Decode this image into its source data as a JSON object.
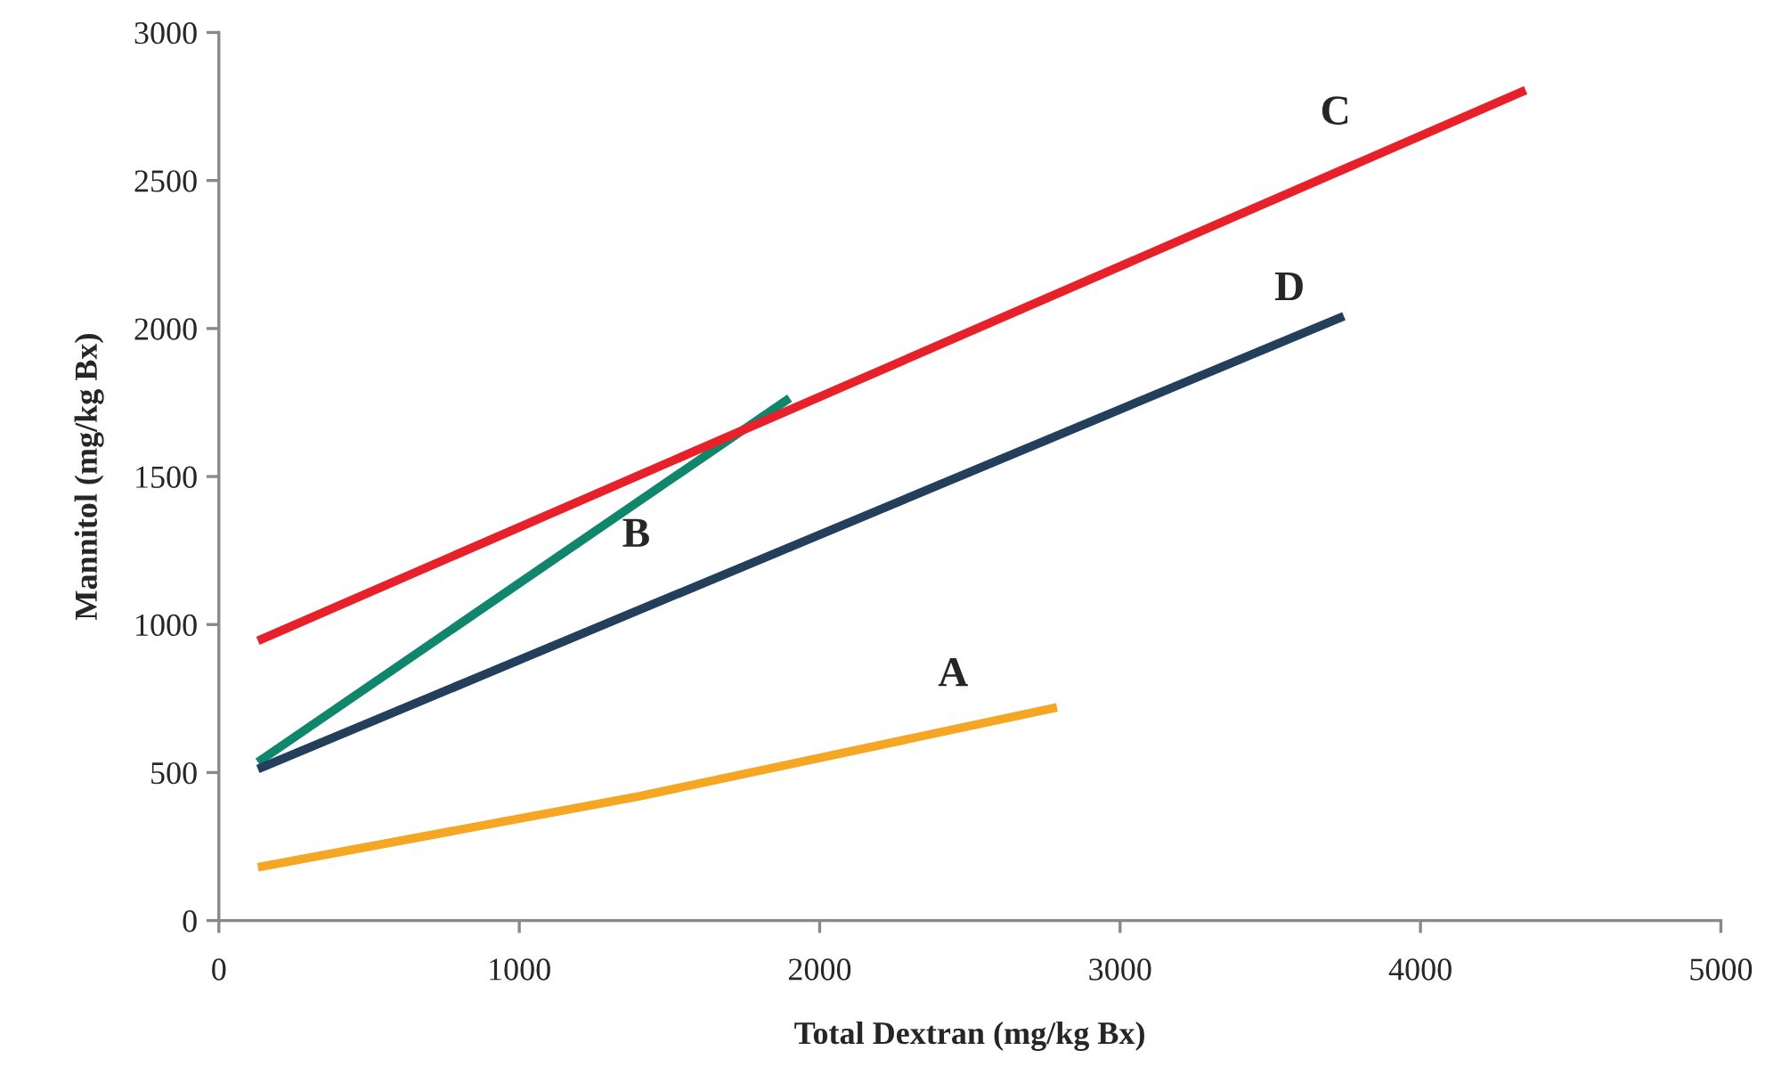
{
  "chart_data": {
    "type": "line",
    "xlabel": "Total Dextran (mg/kg Bx)",
    "ylabel": "Mannitol (mg/kg Bx)",
    "xlim": [
      0,
      5000
    ],
    "xticks": [
      0,
      1000,
      2000,
      3000,
      4000,
      5000
    ],
    "ylim": [
      0,
      3000
    ],
    "yticks": [
      0,
      500,
      1000,
      1500,
      2000,
      2500,
      3000
    ],
    "grid": false,
    "legend": false,
    "marker": "none",
    "line_style": "solid",
    "series": [
      {
        "name": "A",
        "color": "#f5a623",
        "x": [
          130,
          1400,
          2790
        ],
        "values": [
          180,
          420,
          720
        ]
      },
      {
        "name": "B",
        "color": "#10876d",
        "x": [
          130,
          1900
        ],
        "values": [
          535,
          1765
        ]
      },
      {
        "name": "C",
        "color": "#e8202a",
        "x": [
          130,
          4350
        ],
        "values": [
          945,
          2805
        ]
      },
      {
        "name": "D",
        "color": "#233f5c",
        "x": [
          130,
          3745
        ],
        "values": [
          512,
          2042
        ]
      }
    ]
  }
}
